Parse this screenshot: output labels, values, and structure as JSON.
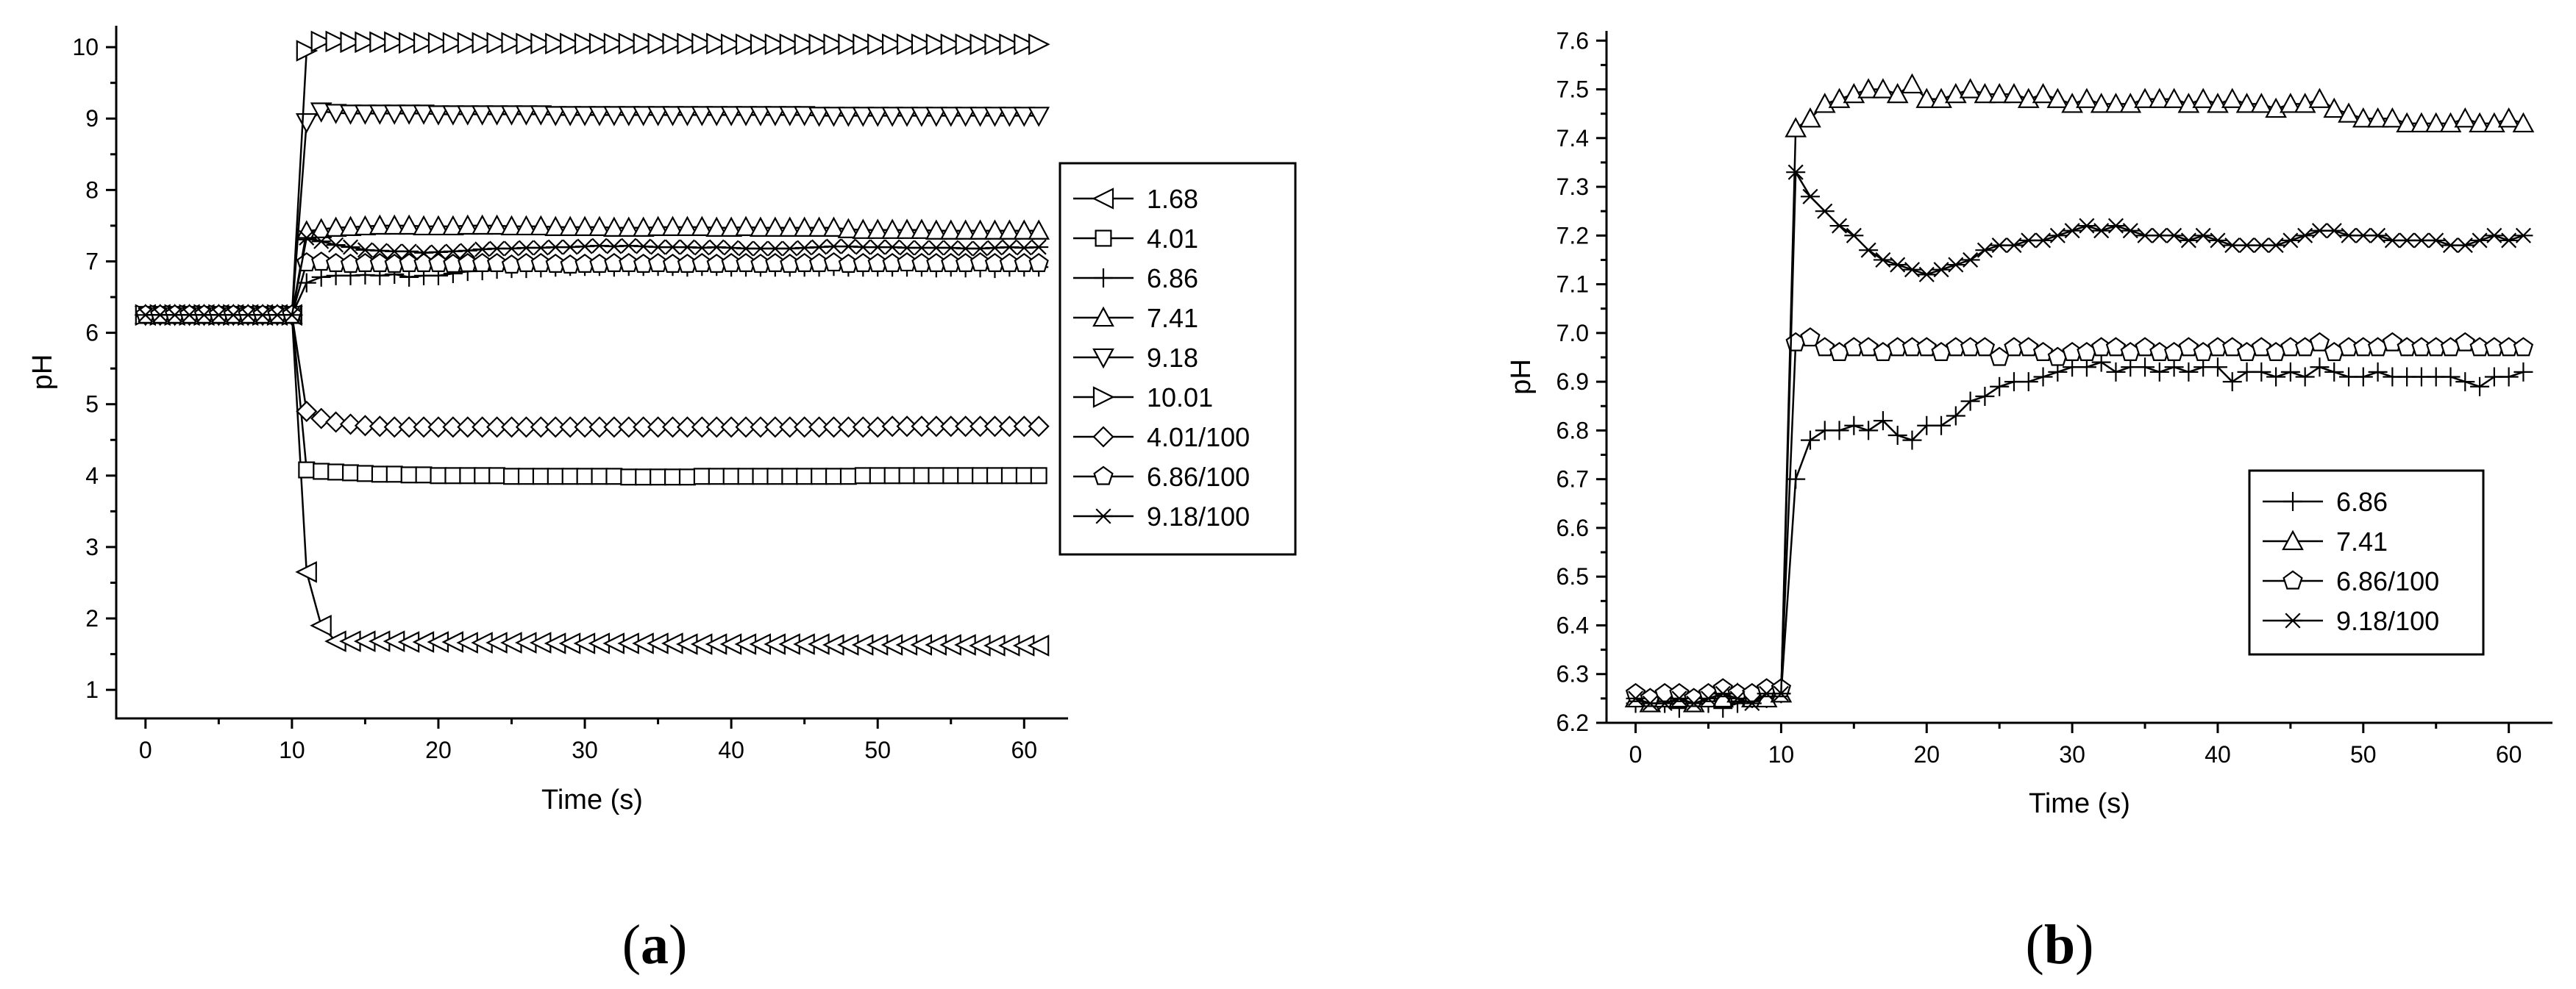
{
  "chart_data": [
    {
      "type": "line",
      "panel_label": "(a)",
      "xlabel": "Time (s)",
      "ylabel": "pH",
      "xlim": [
        -2,
        63
      ],
      "ylim": [
        0.6,
        10.3
      ],
      "xticks": [
        0,
        10,
        20,
        30,
        40,
        50,
        60
      ],
      "yticks": [
        1,
        2,
        3,
        4,
        5,
        6,
        7,
        8,
        9,
        10
      ],
      "legend_position": "center-right",
      "x": [
        0,
        1,
        2,
        3,
        4,
        5,
        6,
        7,
        8,
        9,
        10,
        11,
        12,
        13,
        14,
        15,
        16,
        17,
        18,
        19,
        20,
        21,
        22,
        23,
        24,
        25,
        26,
        27,
        28,
        29,
        30,
        31,
        32,
        33,
        34,
        35,
        36,
        37,
        38,
        39,
        40,
        41,
        42,
        43,
        44,
        45,
        46,
        47,
        48,
        49,
        50,
        51,
        52,
        53,
        54,
        55,
        56,
        57,
        58,
        59,
        60,
        61
      ],
      "series": [
        {
          "name": "1.68",
          "marker": "triangle-left",
          "values": [
            6.25,
            6.25,
            6.25,
            6.25,
            6.25,
            6.25,
            6.25,
            6.25,
            6.25,
            6.25,
            6.25,
            2.65,
            1.9,
            1.68,
            1.68,
            1.68,
            1.68,
            1.68,
            1.67,
            1.67,
            1.67,
            1.67,
            1.66,
            1.66,
            1.66,
            1.66,
            1.66,
            1.66,
            1.65,
            1.65,
            1.65,
            1.65,
            1.65,
            1.65,
            1.65,
            1.65,
            1.65,
            1.64,
            1.64,
            1.64,
            1.64,
            1.64,
            1.64,
            1.64,
            1.64,
            1.64,
            1.64,
            1.63,
            1.63,
            1.63,
            1.63,
            1.63,
            1.63,
            1.63,
            1.63,
            1.63,
            1.63,
            1.62,
            1.62,
            1.62,
            1.62,
            1.62
          ]
        },
        {
          "name": "4.01",
          "marker": "square",
          "values": [
            6.25,
            6.25,
            6.25,
            6.25,
            6.25,
            6.25,
            6.25,
            6.25,
            6.25,
            6.25,
            6.25,
            4.08,
            4.06,
            4.05,
            4.04,
            4.03,
            4.02,
            4.02,
            4.01,
            4.01,
            4.0,
            4.0,
            4.0,
            4.0,
            4.0,
            3.99,
            3.99,
            3.99,
            3.99,
            3.99,
            3.99,
            3.99,
            3.99,
            3.98,
            3.98,
            3.98,
            3.98,
            3.98,
            3.99,
            3.99,
            3.99,
            3.99,
            3.99,
            3.99,
            3.99,
            3.99,
            3.99,
            3.99,
            3.99,
            4.0,
            4.0,
            4.0,
            4.0,
            4.0,
            4.0,
            4.0,
            4.0,
            4.0,
            4.0,
            4.0,
            4.0,
            4.0
          ]
        },
        {
          "name": "6.86",
          "marker": "plus",
          "values": [
            6.25,
            6.25,
            6.25,
            6.25,
            6.25,
            6.25,
            6.25,
            6.25,
            6.25,
            6.25,
            6.25,
            6.7,
            6.78,
            6.8,
            6.8,
            6.81,
            6.8,
            6.82,
            6.78,
            6.8,
            6.8,
            6.83,
            6.86,
            6.87,
            6.89,
            6.9,
            6.9,
            6.91,
            6.92,
            6.93,
            6.93,
            6.93,
            6.92,
            6.93,
            6.93,
            6.93,
            6.93,
            6.92,
            6.93,
            6.93,
            6.92,
            6.92,
            6.92,
            6.92,
            6.92,
            6.92,
            6.92,
            6.93,
            6.92,
            6.92,
            6.92,
            6.92,
            6.92,
            6.92,
            6.91,
            6.92,
            6.91,
            6.91,
            6.9,
            6.92,
            6.92,
            6.92
          ]
        },
        {
          "name": "7.41",
          "marker": "triangle-up",
          "values": [
            6.25,
            6.25,
            6.25,
            6.25,
            6.25,
            6.25,
            6.25,
            6.25,
            6.25,
            6.25,
            6.25,
            7.42,
            7.45,
            7.47,
            7.48,
            7.49,
            7.5,
            7.5,
            7.5,
            7.49,
            7.49,
            7.49,
            7.5,
            7.5,
            7.5,
            7.49,
            7.49,
            7.49,
            7.48,
            7.48,
            7.48,
            7.48,
            7.47,
            7.47,
            7.47,
            7.48,
            7.48,
            7.48,
            7.48,
            7.47,
            7.47,
            7.48,
            7.47,
            7.47,
            7.47,
            7.47,
            7.47,
            7.47,
            7.45,
            7.44,
            7.44,
            7.44,
            7.44,
            7.44,
            7.43,
            7.43,
            7.43,
            7.43,
            7.43,
            7.43,
            7.43,
            7.43
          ]
        },
        {
          "name": "9.18",
          "marker": "triangle-down",
          "values": [
            6.25,
            6.25,
            6.25,
            6.25,
            6.25,
            6.25,
            6.25,
            6.25,
            6.25,
            6.25,
            6.25,
            8.95,
            9.1,
            9.08,
            9.07,
            9.07,
            9.07,
            9.07,
            9.07,
            9.07,
            9.06,
            9.06,
            9.06,
            9.06,
            9.06,
            9.06,
            9.06,
            9.06,
            9.05,
            9.05,
            9.05,
            9.05,
            9.05,
            9.05,
            9.05,
            9.05,
            9.05,
            9.05,
            9.05,
            9.05,
            9.05,
            9.05,
            9.05,
            9.05,
            9.05,
            9.05,
            9.04,
            9.04,
            9.04,
            9.04,
            9.04,
            9.04,
            9.04,
            9.04,
            9.04,
            9.04,
            9.04,
            9.04,
            9.04,
            9.04,
            9.04,
            9.04
          ]
        },
        {
          "name": "10.01",
          "marker": "triangle-right",
          "values": [
            6.25,
            6.25,
            6.25,
            6.25,
            6.25,
            6.25,
            6.25,
            6.25,
            6.25,
            6.25,
            6.25,
            9.95,
            10.08,
            10.08,
            10.07,
            10.07,
            10.07,
            10.07,
            10.06,
            10.06,
            10.06,
            10.06,
            10.06,
            10.06,
            10.06,
            10.06,
            10.05,
            10.05,
            10.05,
            10.05,
            10.05,
            10.05,
            10.05,
            10.05,
            10.05,
            10.05,
            10.05,
            10.05,
            10.05,
            10.05,
            10.04,
            10.04,
            10.04,
            10.04,
            10.04,
            10.04,
            10.04,
            10.04,
            10.04,
            10.04,
            10.04,
            10.04,
            10.04,
            10.04,
            10.04,
            10.04,
            10.04,
            10.04,
            10.04,
            10.04,
            10.04,
            10.04
          ]
        },
        {
          "name": "4.01/100",
          "marker": "diamond",
          "values": [
            6.25,
            6.25,
            6.25,
            6.25,
            6.25,
            6.25,
            6.25,
            6.25,
            6.25,
            6.25,
            6.25,
            4.9,
            4.8,
            4.75,
            4.72,
            4.7,
            4.69,
            4.68,
            4.68,
            4.68,
            4.68,
            4.68,
            4.68,
            4.68,
            4.68,
            4.68,
            4.68,
            4.68,
            4.68,
            4.68,
            4.68,
            4.68,
            4.68,
            4.68,
            4.68,
            4.68,
            4.68,
            4.68,
            4.68,
            4.68,
            4.68,
            4.68,
            4.68,
            4.68,
            4.68,
            4.68,
            4.68,
            4.68,
            4.68,
            4.68,
            4.68,
            4.69,
            4.69,
            4.69,
            4.69,
            4.69,
            4.69,
            4.69,
            4.69,
            4.69,
            4.69,
            4.69
          ]
        },
        {
          "name": "6.86/100",
          "marker": "pentagon",
          "values": [
            6.25,
            6.25,
            6.25,
            6.25,
            6.25,
            6.25,
            6.25,
            6.25,
            6.25,
            6.25,
            6.25,
            6.98,
            6.99,
            6.97,
            6.96,
            6.97,
            6.97,
            6.96,
            6.97,
            6.97,
            6.97,
            6.96,
            6.97,
            6.97,
            6.97,
            6.95,
            6.97,
            6.97,
            6.96,
            6.95,
            6.96,
            6.96,
            6.97,
            6.97,
            6.96,
            6.97,
            6.96,
            6.96,
            6.97,
            6.96,
            6.97,
            6.97,
            6.96,
            6.97,
            6.96,
            6.97,
            6.97,
            6.98,
            6.96,
            6.97,
            6.97,
            6.97,
            6.98,
            6.97,
            6.97,
            6.97,
            6.97,
            6.98,
            6.97,
            6.97,
            6.97,
            6.97
          ]
        },
        {
          "name": "9.18/100",
          "marker": "asterisk",
          "values": [
            6.25,
            6.25,
            6.25,
            6.25,
            6.25,
            6.25,
            6.25,
            6.25,
            6.25,
            6.25,
            6.25,
            7.33,
            7.28,
            7.23,
            7.2,
            7.16,
            7.15,
            7.14,
            7.14,
            7.12,
            7.13,
            7.14,
            7.15,
            7.17,
            7.18,
            7.18,
            7.19,
            7.19,
            7.2,
            7.2,
            7.21,
            7.22,
            7.21,
            7.22,
            7.21,
            7.2,
            7.2,
            7.2,
            7.19,
            7.2,
            7.19,
            7.18,
            7.18,
            7.18,
            7.18,
            7.19,
            7.2,
            7.21,
            7.21,
            7.2,
            7.2,
            7.2,
            7.19,
            7.19,
            7.19,
            7.19,
            7.18,
            7.18,
            7.19,
            7.2,
            7.19,
            7.2
          ]
        }
      ]
    },
    {
      "type": "line",
      "panel_label": "(b)",
      "xlabel": "Time (s)",
      "ylabel": "pH",
      "xlim": [
        -2,
        63
      ],
      "ylim": [
        6.2,
        7.62
      ],
      "xticks": [
        0,
        10,
        20,
        30,
        40,
        50,
        60
      ],
      "yticks": [
        6.2,
        6.3,
        6.4,
        6.5,
        6.6,
        6.7,
        6.8,
        6.9,
        7.0,
        7.1,
        7.2,
        7.3,
        7.4,
        7.5,
        7.6
      ],
      "legend_position": "bottom-right",
      "x": [
        0,
        1,
        2,
        3,
        4,
        5,
        6,
        7,
        8,
        9,
        10,
        11,
        12,
        13,
        14,
        15,
        16,
        17,
        18,
        19,
        20,
        21,
        22,
        23,
        24,
        25,
        26,
        27,
        28,
        29,
        30,
        31,
        32,
        33,
        34,
        35,
        36,
        37,
        38,
        39,
        40,
        41,
        42,
        43,
        44,
        45,
        46,
        47,
        48,
        49,
        50,
        51,
        52,
        53,
        54,
        55,
        56,
        57,
        58,
        59,
        60,
        61
      ],
      "series": [
        {
          "name": "6.86",
          "marker": "plus",
          "values": [
            6.24,
            6.25,
            6.24,
            6.23,
            6.25,
            6.24,
            6.23,
            6.24,
            6.25,
            6.25,
            6.26,
            6.7,
            6.78,
            6.8,
            6.8,
            6.81,
            6.8,
            6.82,
            6.79,
            6.78,
            6.81,
            6.81,
            6.83,
            6.86,
            6.87,
            6.89,
            6.9,
            6.9,
            6.91,
            6.92,
            6.93,
            6.93,
            6.94,
            6.92,
            6.93,
            6.93,
            6.92,
            6.93,
            6.92,
            6.93,
            6.93,
            6.9,
            6.92,
            6.92,
            6.91,
            6.92,
            6.91,
            6.93,
            6.92,
            6.91,
            6.91,
            6.92,
            6.91,
            6.91,
            6.91,
            6.91,
            6.91,
            6.9,
            6.89,
            6.91,
            6.91,
            6.92
          ]
        },
        {
          "name": "7.41",
          "marker": "triangle-up",
          "values": [
            6.25,
            6.24,
            6.25,
            6.25,
            6.24,
            6.25,
            6.25,
            6.26,
            6.25,
            6.25,
            6.26,
            7.42,
            7.44,
            7.47,
            7.48,
            7.49,
            7.5,
            7.5,
            7.49,
            7.51,
            7.48,
            7.48,
            7.49,
            7.5,
            7.49,
            7.49,
            7.49,
            7.48,
            7.49,
            7.48,
            7.47,
            7.48,
            7.47,
            7.47,
            7.47,
            7.48,
            7.48,
            7.48,
            7.47,
            7.48,
            7.47,
            7.48,
            7.47,
            7.47,
            7.46,
            7.47,
            7.47,
            7.48,
            7.46,
            7.45,
            7.44,
            7.44,
            7.44,
            7.43,
            7.43,
            7.43,
            7.43,
            7.44,
            7.43,
            7.43,
            7.44,
            7.43
          ]
        },
        {
          "name": "6.86/100",
          "marker": "pentagon",
          "values": [
            6.26,
            6.25,
            6.26,
            6.26,
            6.25,
            6.26,
            6.27,
            6.26,
            6.26,
            6.27,
            6.27,
            6.98,
            6.99,
            6.97,
            6.96,
            6.97,
            6.97,
            6.96,
            6.97,
            6.97,
            6.97,
            6.96,
            6.97,
            6.97,
            6.97,
            6.95,
            6.97,
            6.97,
            6.96,
            6.95,
            6.96,
            6.96,
            6.97,
            6.97,
            6.96,
            6.97,
            6.96,
            6.96,
            6.97,
            6.96,
            6.97,
            6.97,
            6.96,
            6.97,
            6.96,
            6.97,
            6.97,
            6.98,
            6.96,
            6.97,
            6.97,
            6.97,
            6.98,
            6.97,
            6.97,
            6.97,
            6.97,
            6.98,
            6.97,
            6.97,
            6.97,
            6.97
          ]
        },
        {
          "name": "9.18/100",
          "marker": "asterisk",
          "values": [
            6.25,
            6.24,
            6.24,
            6.25,
            6.24,
            6.25,
            6.26,
            6.25,
            6.24,
            6.26,
            6.26,
            7.33,
            7.28,
            7.25,
            7.22,
            7.2,
            7.17,
            7.15,
            7.14,
            7.13,
            7.12,
            7.13,
            7.14,
            7.15,
            7.17,
            7.18,
            7.18,
            7.19,
            7.19,
            7.2,
            7.21,
            7.22,
            7.21,
            7.22,
            7.21,
            7.2,
            7.2,
            7.2,
            7.19,
            7.2,
            7.19,
            7.18,
            7.18,
            7.18,
            7.18,
            7.19,
            7.2,
            7.21,
            7.21,
            7.2,
            7.2,
            7.2,
            7.19,
            7.19,
            7.19,
            7.19,
            7.18,
            7.18,
            7.19,
            7.2,
            7.19,
            7.2
          ]
        }
      ]
    }
  ]
}
